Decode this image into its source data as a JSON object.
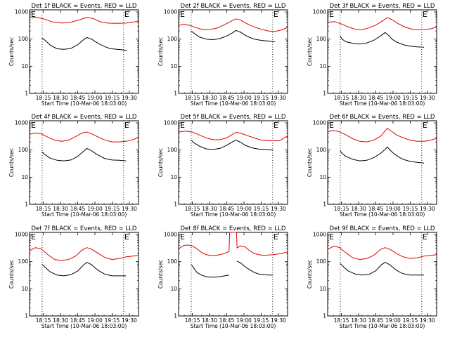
{
  "common": {
    "ylabel": "Counts/sec",
    "xlabel": "Start Time (10-Mar-06 18:03:00)",
    "x_ticks": [
      "18:15",
      "18:30",
      "18:45",
      "19:00",
      "19:15",
      "19:30"
    ],
    "y_ticks": [
      "1",
      "10",
      "100",
      "1000"
    ],
    "yscale": "log",
    "ylim": [
      1,
      1200
    ],
    "xlim_minutes_after_1803": [
      0,
      95
    ],
    "marker_label": "E",
    "dotted_lines_minutes_after_1803": [
      11,
      82
    ],
    "event_color": "#000000",
    "lld_color": "#e00000"
  },
  "chart_data": [
    {
      "type": "line",
      "title": "Det 1f BLACK = Events, RED = LLD",
      "series": [
        {
          "color": "#e00000",
          "x": [
            0,
            6,
            12,
            20,
            28,
            36,
            44,
            50,
            56,
            62,
            68,
            76,
            84,
            90,
            95
          ],
          "y": [
            600,
            640,
            560,
            430,
            390,
            420,
            520,
            640,
            560,
            430,
            390,
            380,
            390,
            420,
            460
          ]
        },
        {
          "color": "#000000",
          "x": [
            11,
            13,
            18,
            24,
            30,
            36,
            42,
            47,
            50,
            54,
            58,
            62,
            66,
            70,
            76,
            82,
            85
          ],
          "y": [
            110,
            95,
            60,
            44,
            42,
            45,
            62,
            95,
            115,
            100,
            78,
            62,
            52,
            45,
            42,
            40,
            38
          ]
        }
      ]
    },
    {
      "type": "line",
      "title": "Det 2f BLACK = Events, RED = LLD",
      "series": [
        {
          "color": "#e00000",
          "x": [
            0,
            5,
            10,
            16,
            22,
            28,
            34,
            40,
            46,
            50,
            54,
            60,
            66,
            72,
            78,
            84,
            90,
            95
          ],
          "y": [
            330,
            350,
            320,
            260,
            220,
            230,
            260,
            340,
            460,
            560,
            500,
            360,
            280,
            230,
            200,
            190,
            220,
            270
          ]
        },
        {
          "color": "#000000",
          "x": [
            11,
            13,
            18,
            24,
            30,
            36,
            42,
            47,
            50,
            54,
            58,
            62,
            66,
            72,
            78,
            84
          ],
          "y": [
            200,
            170,
            120,
            100,
            95,
            105,
            130,
            170,
            210,
            180,
            140,
            115,
            100,
            90,
            85,
            80
          ]
        }
      ]
    },
    {
      "type": "line",
      "title": "Det 3f BLACK = Events, RED = LLD",
      "series": [
        {
          "color": "#e00000",
          "x": [
            0,
            6,
            12,
            18,
            24,
            30,
            36,
            42,
            48,
            52,
            56,
            62,
            68,
            76,
            84,
            90,
            95
          ],
          "y": [
            420,
            440,
            360,
            280,
            230,
            220,
            260,
            330,
            470,
            620,
            520,
            360,
            270,
            220,
            220,
            240,
            280
          ]
        },
        {
          "color": "#000000",
          "x": [
            11,
            12.5,
            16,
            22,
            28,
            34,
            40,
            46,
            50,
            53,
            56,
            60,
            66,
            72,
            78,
            84
          ],
          "y": [
            130,
            100,
            80,
            70,
            66,
            72,
            90,
            130,
            175,
            140,
            100,
            78,
            62,
            55,
            52,
            50
          ]
        }
      ]
    },
    {
      "type": "line",
      "title": "Det 4f BLACK = Events, RED = LLD",
      "series": [
        {
          "color": "#e00000",
          "x": [
            0,
            5,
            10,
            16,
            22,
            28,
            34,
            40,
            46,
            50,
            54,
            60,
            66,
            72,
            78,
            84,
            90,
            95
          ],
          "y": [
            380,
            420,
            400,
            300,
            230,
            210,
            230,
            310,
            430,
            460,
            400,
            300,
            230,
            200,
            200,
            210,
            240,
            290
          ]
        },
        {
          "color": "#000000",
          "x": [
            11,
            13,
            18,
            24,
            30,
            36,
            42,
            47,
            50,
            54,
            58,
            62,
            66,
            72,
            78,
            84
          ],
          "y": [
            85,
            70,
            50,
            42,
            40,
            43,
            58,
            90,
            115,
            95,
            72,
            58,
            48,
            43,
            42,
            40
          ]
        }
      ]
    },
    {
      "type": "line",
      "title": "Det 5f BLACK = Events, RED = LLD",
      "series": [
        {
          "color": "#e00000",
          "x": [
            0,
            6,
            12,
            18,
            24,
            30,
            36,
            42,
            46,
            50,
            54,
            60,
            66,
            72,
            80,
            88,
            95
          ],
          "y": [
            460,
            500,
            460,
            360,
            280,
            240,
            240,
            280,
            360,
            450,
            420,
            340,
            280,
            230,
            220,
            220,
            330
          ]
        },
        {
          "color": "#000000",
          "x": [
            11,
            13,
            18,
            24,
            30,
            36,
            42,
            47,
            50,
            54,
            58,
            64,
            70,
            76,
            82
          ],
          "y": [
            230,
            190,
            140,
            110,
            105,
            115,
            150,
            200,
            230,
            195,
            150,
            120,
            108,
            104,
            100
          ]
        }
      ]
    },
    {
      "type": "line",
      "title": "Det 6f BLACK = Events, RED = LLD",
      "series": [
        {
          "color": "#e00000",
          "x": [
            0,
            5,
            10,
            16,
            22,
            28,
            34,
            40,
            46,
            50,
            52,
            56,
            60,
            66,
            72,
            78,
            84,
            90,
            95
          ],
          "y": [
            480,
            520,
            480,
            360,
            260,
            210,
            200,
            230,
            320,
            500,
            640,
            480,
            360,
            280,
            230,
            210,
            210,
            230,
            270
          ]
        },
        {
          "color": "#000000",
          "x": [
            11,
            12.5,
            16,
            22,
            28,
            34,
            40,
            46,
            50,
            52,
            55,
            58,
            62,
            66,
            72,
            78,
            84
          ],
          "y": [
            95,
            75,
            58,
            45,
            40,
            42,
            52,
            75,
            105,
            130,
            95,
            72,
            55,
            45,
            38,
            35,
            33
          ]
        }
      ]
    },
    {
      "type": "line",
      "title": "Det 7f BLACK = Events, RED = LLD",
      "series": [
        {
          "color": "#e00000",
          "x": [
            0,
            5,
            10,
            16,
            22,
            28,
            34,
            40,
            46,
            50,
            54,
            60,
            66,
            72,
            78,
            84,
            90,
            95
          ],
          "y": [
            250,
            330,
            300,
            180,
            120,
            110,
            120,
            160,
            270,
            330,
            290,
            200,
            140,
            120,
            130,
            150,
            160,
            170
          ]
        },
        {
          "color": "#000000",
          "x": [
            11,
            13,
            18,
            24,
            30,
            36,
            42,
            47,
            50,
            54,
            58,
            62,
            66,
            72,
            78,
            84
          ],
          "y": [
            80,
            65,
            42,
            32,
            30,
            33,
            45,
            75,
            95,
            78,
            55,
            42,
            34,
            30,
            30,
            30
          ]
        }
      ]
    },
    {
      "type": "line",
      "title": "Det 8f BLACK = Events, RED = LLD",
      "series": [
        {
          "color": "#e00000",
          "x": [
            0,
            4,
            8,
            12,
            16,
            20,
            24,
            28,
            32,
            36,
            40,
            44,
            44.5,
            48,
            50.5,
            51,
            54,
            58,
            62,
            66,
            70,
            74,
            78,
            82,
            86,
            90,
            95
          ],
          "y": [
            300,
            390,
            410,
            380,
            300,
            220,
            180,
            170,
            170,
            180,
            200,
            240,
            1200,
            1200,
            1200,
            320,
            380,
            350,
            250,
            200,
            180,
            170,
            175,
            180,
            190,
            200,
            230
          ]
        },
        {
          "color": "#000000",
          "x": [
            11,
            13,
            16,
            20,
            24,
            28,
            32,
            36,
            40,
            44
          ],
          "y": [
            80,
            60,
            40,
            32,
            28,
            27,
            27,
            28,
            30,
            32
          ]
        },
        {
          "color": "#000000",
          "x": [
            51,
            54,
            58,
            62,
            66,
            70,
            74,
            78,
            82
          ],
          "y": [
            105,
            90,
            65,
            50,
            40,
            35,
            33,
            32,
            32
          ]
        }
      ]
    },
    {
      "type": "line",
      "title": "Det 9f BLACK = Events, RED = LLD",
      "series": [
        {
          "color": "#e00000",
          "x": [
            0,
            5,
            10,
            16,
            22,
            28,
            34,
            40,
            46,
            50,
            54,
            60,
            66,
            72,
            78,
            84,
            90,
            95
          ],
          "y": [
            280,
            370,
            340,
            210,
            140,
            120,
            130,
            170,
            280,
            330,
            290,
            200,
            150,
            130,
            140,
            160,
            170,
            180
          ]
        },
        {
          "color": "#000000",
          "x": [
            11,
            13,
            18,
            24,
            30,
            36,
            42,
            47,
            50,
            54,
            58,
            62,
            66,
            72,
            78,
            84
          ],
          "y": [
            85,
            70,
            45,
            35,
            32,
            34,
            46,
            78,
            95,
            78,
            56,
            43,
            36,
            32,
            32,
            32
          ]
        }
      ]
    }
  ]
}
